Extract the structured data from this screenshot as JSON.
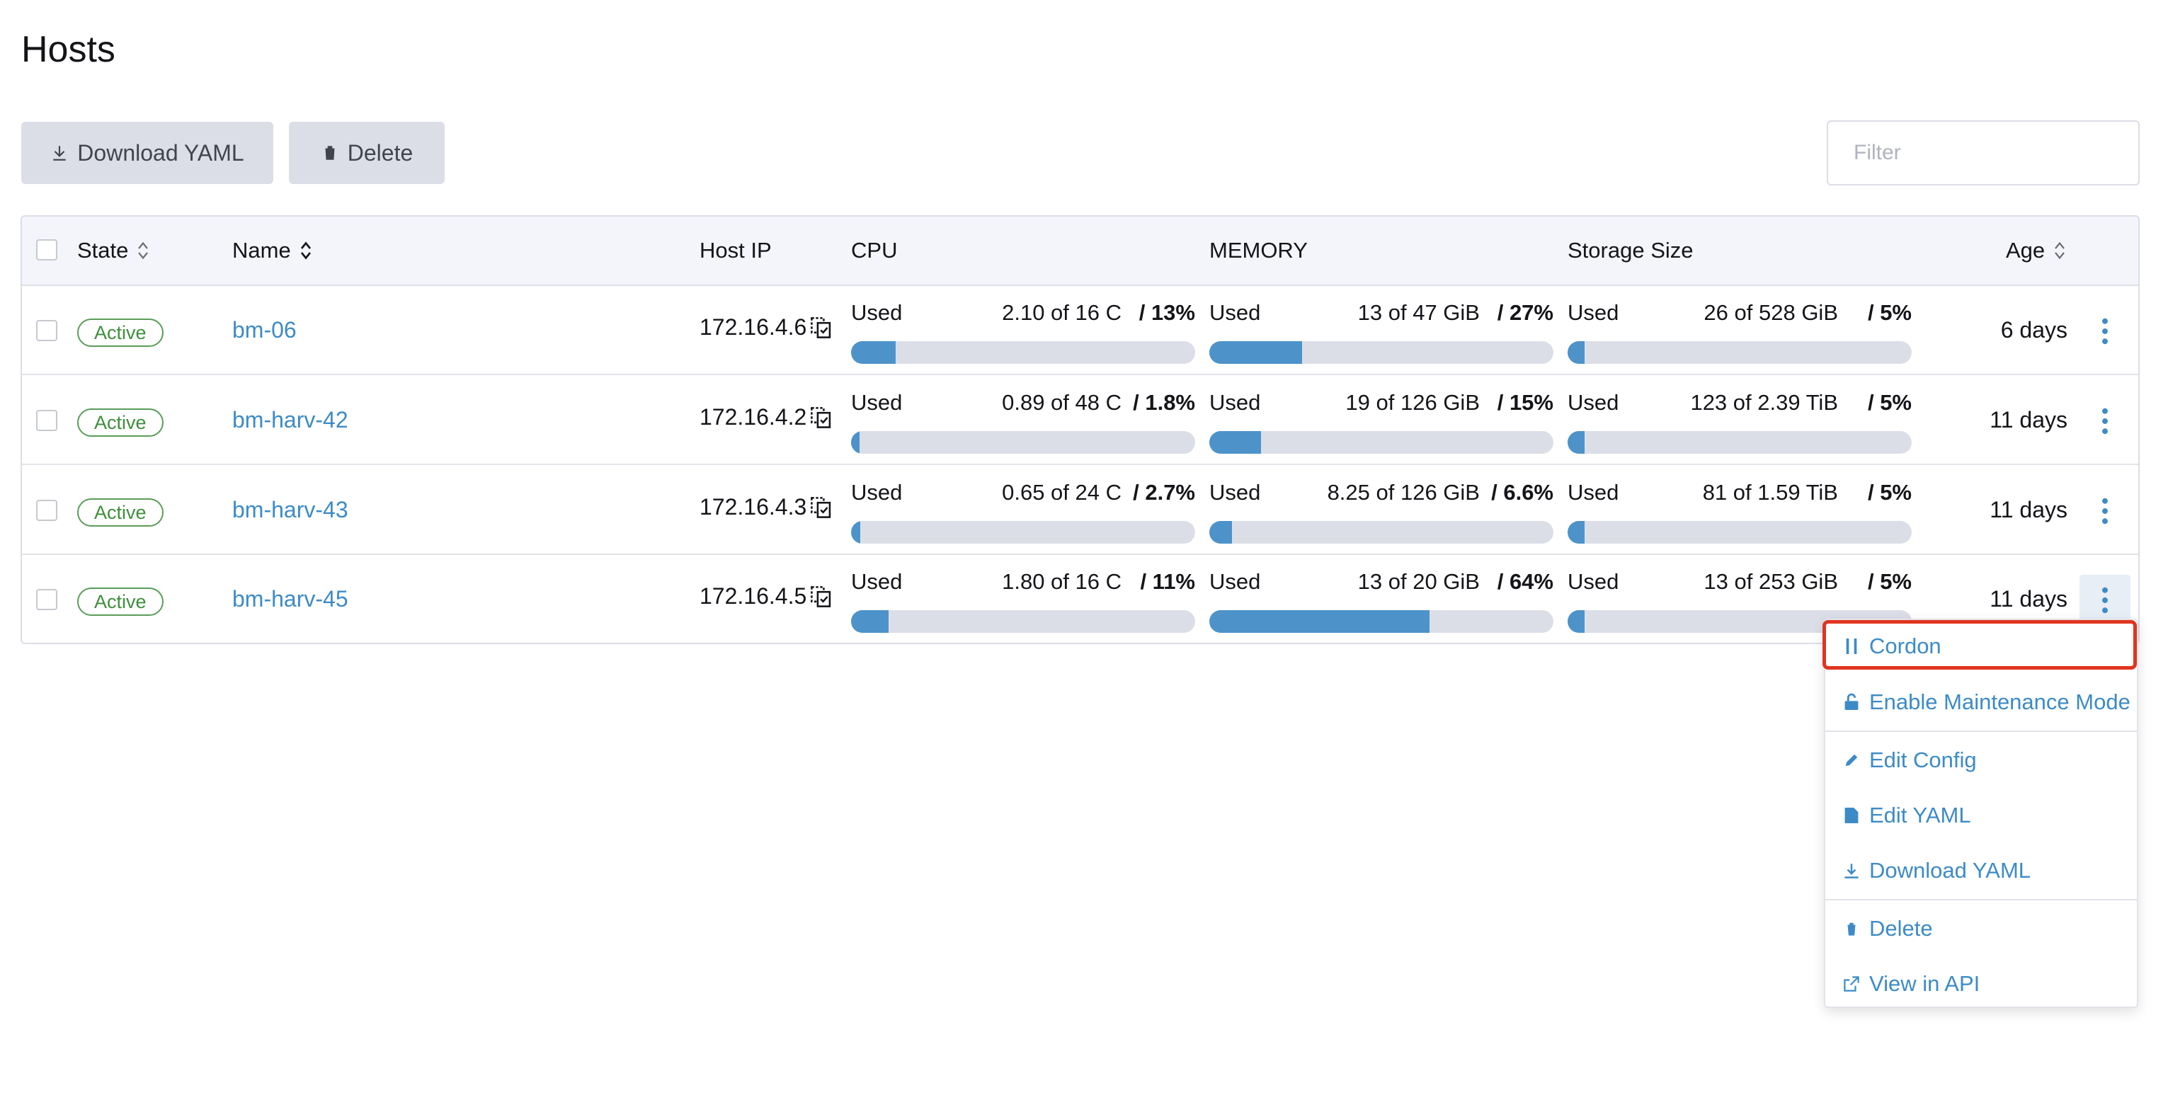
{
  "page": {
    "title": "Hosts"
  },
  "toolbar": {
    "download_label": "Download YAML",
    "delete_label": "Delete",
    "filter_placeholder": "Filter"
  },
  "table": {
    "columns": {
      "state": "State",
      "name": "Name",
      "host_ip": "Host IP",
      "cpu": "CPU",
      "memory": "MEMORY",
      "storage": "Storage Size",
      "age": "Age"
    },
    "rows": [
      {
        "state": "Active",
        "name": "bm-06",
        "ip": "172.16.4.6",
        "cpu": {
          "label": "Used",
          "amount": "2.10 of 16 C",
          "pct": "/ 13%",
          "fraction": 0.13
        },
        "mem": {
          "label": "Used",
          "amount": "13 of 47 GiB",
          "pct": "/ 27%",
          "fraction": 0.27
        },
        "storage": {
          "label": "Used",
          "amount": "26 of 528 GiB",
          "pct": "/ 5%",
          "fraction": 0.05
        },
        "age": "6 days"
      },
      {
        "state": "Active",
        "name": "bm-harv-42",
        "ip": "172.16.4.2",
        "cpu": {
          "label": "Used",
          "amount": "0.89 of 48 C",
          "pct": "/ 1.8%",
          "fraction": 0.018
        },
        "mem": {
          "label": "Used",
          "amount": "19 of 126 GiB",
          "pct": "/ 15%",
          "fraction": 0.15
        },
        "storage": {
          "label": "Used",
          "amount": "123 of 2.39 TiB",
          "pct": "/ 5%",
          "fraction": 0.05
        },
        "age": "11 days"
      },
      {
        "state": "Active",
        "name": "bm-harv-43",
        "ip": "172.16.4.3",
        "cpu": {
          "label": "Used",
          "amount": "0.65 of 24 C",
          "pct": "/ 2.7%",
          "fraction": 0.027
        },
        "mem": {
          "label": "Used",
          "amount": "8.25 of 126 GiB",
          "pct": "/ 6.6%",
          "fraction": 0.066
        },
        "storage": {
          "label": "Used",
          "amount": "81 of 1.59 TiB",
          "pct": "/ 5%",
          "fraction": 0.05
        },
        "age": "11 days"
      },
      {
        "state": "Active",
        "name": "bm-harv-45",
        "ip": "172.16.4.5",
        "cpu": {
          "label": "Used",
          "amount": "1.80 of 16 C",
          "pct": "/ 11%",
          "fraction": 0.11
        },
        "mem": {
          "label": "Used",
          "amount": "13 of 20 GiB",
          "pct": "/ 64%",
          "fraction": 0.64
        },
        "storage": {
          "label": "Used",
          "amount": "13 of 253 GiB",
          "pct": "/ 5%",
          "fraction": 0.05
        },
        "age": "11 days"
      }
    ]
  },
  "context_menu": {
    "items": [
      {
        "label": "Cordon",
        "icon": "pause-icon"
      },
      {
        "label": "Enable Maintenance Mode",
        "icon": "unlock-icon"
      },
      {
        "label": "Edit Config",
        "icon": "pencil-icon"
      },
      {
        "label": "Edit YAML",
        "icon": "file-icon"
      },
      {
        "label": "Download YAML",
        "icon": "download-icon"
      },
      {
        "label": "Delete",
        "icon": "trash-icon"
      },
      {
        "label": "View in API",
        "icon": "external-link-icon"
      }
    ],
    "highlighted": "Cordon"
  },
  "colors": {
    "accent": "#3d8bc6",
    "active_badge": "#3f8f3c",
    "highlight_border": "#e0341f"
  }
}
